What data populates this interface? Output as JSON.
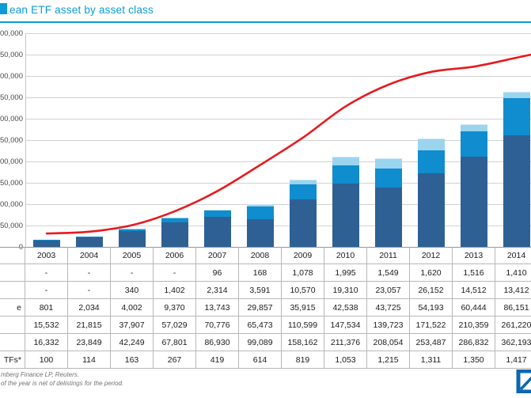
{
  "page": {
    "title_visible": "ean ETF asset by asset class",
    "footnote_line1_visible": "mberg Finance LP, Reuters.",
    "footnote_line2_visible": "of the year is net of delistings for the period."
  },
  "colors": {
    "accent_blue": "#0a9bd8",
    "logo_blue": "#0b67b2",
    "bar_dark_blue": "#2e6094",
    "bar_bright_blue": "#0f8dce",
    "bar_light_blue": "#9bd4ef",
    "bar_pale_blue": "#cfe9f7",
    "line_red": "#e51b20",
    "gridline_gray": "#d2d2d2",
    "baseline_gray": "#8f8f8f"
  },
  "chart_data": {
    "type": "bar",
    "stacked": true,
    "overlay_line": true,
    "categories": [
      "2003",
      "2004",
      "2005",
      "2006",
      "2007",
      "2008",
      "2009",
      "2010",
      "2011",
      "2012",
      "2013",
      "2014"
    ],
    "series": [
      {
        "series_id": "stack-bottom",
        "label_fragment": "",
        "color_key": "bar_dark_blue",
        "values": [
          15532,
          21815,
          37907,
          57029,
          70776,
          65473,
          110599,
          147534,
          139723,
          171522,
          210359,
          261220
        ]
      },
      {
        "series_id": "stack-2",
        "label_fragment": "e",
        "color_key": "bar_bright_blue",
        "values": [
          801,
          2034,
          4002,
          9370,
          13743,
          29857,
          35915,
          42538,
          43725,
          54193,
          60444,
          86151
        ]
      },
      {
        "series_id": "stack-3",
        "label_fragment": "",
        "color_key": "bar_light_blue",
        "values": [
          0,
          0,
          340,
          1402,
          2314,
          3591,
          10570,
          19310,
          23057,
          26152,
          14512,
          13412
        ]
      },
      {
        "series_id": "stack-top",
        "label_fragment": "",
        "color_key": "bar_pale_blue",
        "values": [
          0,
          0,
          0,
          0,
          96,
          168,
          1078,
          1995,
          1549,
          1620,
          1516,
          1410
        ]
      }
    ],
    "line_series": {
      "series_id": "count-line",
      "label_fragment": "TFs*",
      "color_key": "line_red",
      "axis": "secondary",
      "values": [
        100,
        114,
        163,
        267,
        419,
        614,
        819,
        1053,
        1215,
        1311,
        1350,
        1417
      ]
    },
    "primary_axis": {
      "min": 0,
      "max": 500000,
      "tick_step": 50000,
      "tick_labels_clipped_at_left": true
    },
    "secondary_axis": {
      "min": 0,
      "max": 1600
    },
    "gridlines": true,
    "title_visible": "ean ETF asset by asset class"
  },
  "table": {
    "header_row": [
      "2003",
      "2004",
      "2005",
      "2006",
      "2007",
      "2008",
      "2009",
      "2010",
      "2011",
      "2012",
      "2013",
      "2014"
    ],
    "rows": [
      {
        "label_fragment": "",
        "cells": [
          "-",
          "-",
          "-",
          "-",
          "96",
          "168",
          "1,078",
          "1,995",
          "1,549",
          "1,620",
          "1,516",
          "1,410"
        ]
      },
      {
        "label_fragment": "",
        "cells": [
          "-",
          "-",
          "340",
          "1,402",
          "2,314",
          "3,591",
          "10,570",
          "19,310",
          "23,057",
          "26,152",
          "14,512",
          "13,412"
        ]
      },
      {
        "label_fragment": "e",
        "cells": [
          "801",
          "2,034",
          "4,002",
          "9,370",
          "13,743",
          "29,857",
          "35,915",
          "42,538",
          "43,725",
          "54,193",
          "60,444",
          "86,151"
        ]
      },
      {
        "label_fragment": "",
        "cells": [
          "15,532",
          "21,815",
          "37,907",
          "57,029",
          "70,776",
          "65,473",
          "110,599",
          "147,534",
          "139,723",
          "171,522",
          "210,359",
          "261,220"
        ]
      },
      {
        "label_fragment": "",
        "cells": [
          "16,332",
          "23,849",
          "42,249",
          "67,801",
          "86,930",
          "99,089",
          "158,162",
          "211,376",
          "208,054",
          "253,487",
          "286,832",
          "362,193"
        ]
      },
      {
        "label_fragment": "TFs*",
        "cells": [
          "100",
          "114",
          "163",
          "267",
          "419",
          "614",
          "819",
          "1,053",
          "1,215",
          "1,311",
          "1,350",
          "1,417"
        ]
      }
    ]
  }
}
